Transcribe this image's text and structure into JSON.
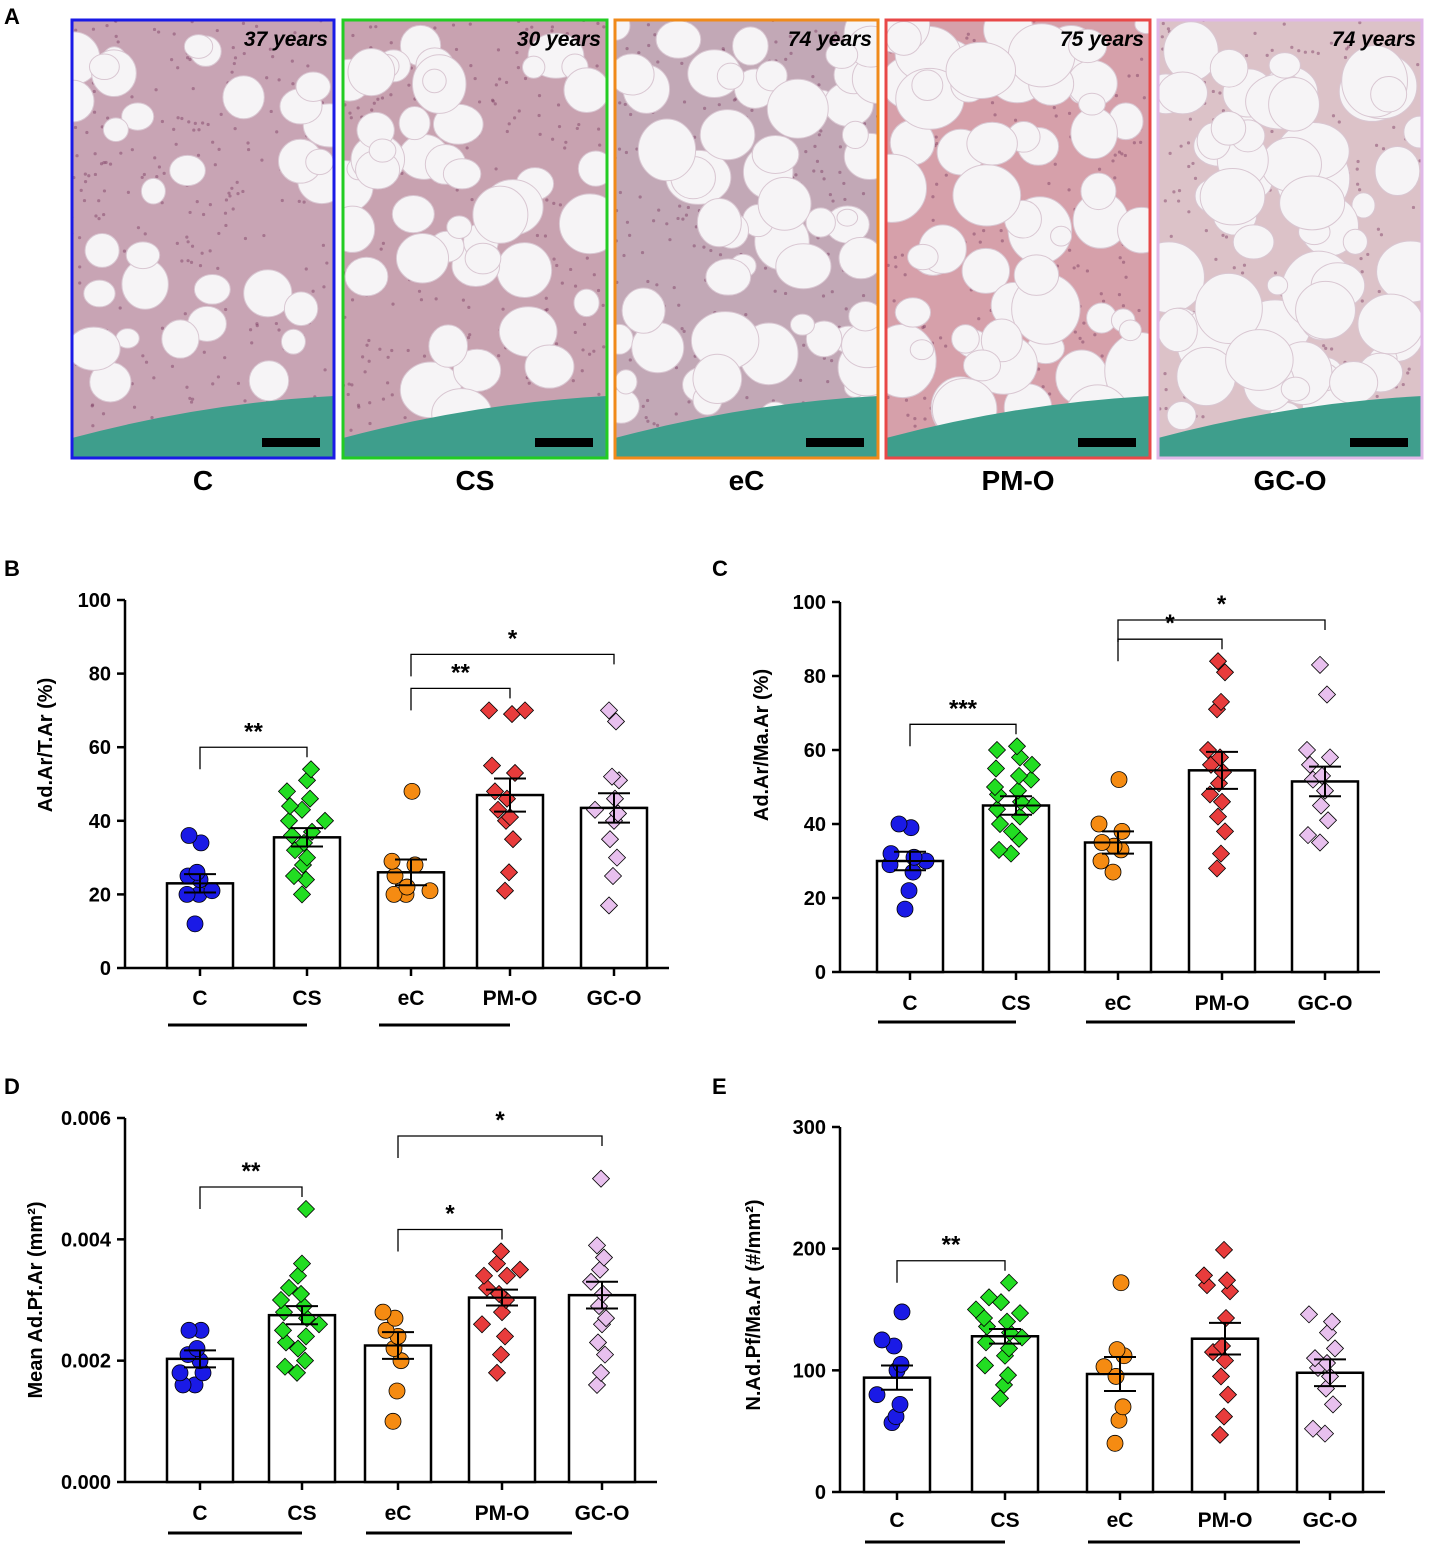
{
  "panel_a": {
    "letter": "A",
    "images": [
      {
        "group": "C",
        "age": "37 years",
        "border": "#1a1ae6",
        "bg": "#c8a4b4",
        "fat": 0.22
      },
      {
        "group": "CS",
        "age": "30 years",
        "border": "#22cc22",
        "bg": "#c8a2b0",
        "fat": 0.4
      },
      {
        "group": "eC",
        "age": "74 years",
        "border": "#f08a1a",
        "bg": "#c2a8b6",
        "fat": 0.55
      },
      {
        "group": "PM-O",
        "age": "75 years",
        "border": "#e84848",
        "bg": "#d6a0aa",
        "fat": 0.62
      },
      {
        "group": "GC-O",
        "age": "74 years",
        "border": "#e0b8e8",
        "bg": "#dcc2c8",
        "fat": 0.7
      }
    ],
    "bone_color": "#3e9e8c"
  },
  "group_colors": {
    "C": "#1a1ae6",
    "CS": "#22dd22",
    "eC": "#f58b12",
    "PM-O": "#e83c3c",
    "GC-O": "#e8c0ee"
  },
  "chart_data": [
    {
      "letter": "B",
      "type": "bar",
      "ylabel": "Ad.Ar/T.Ar  (%)",
      "ylim": [
        0,
        100
      ],
      "ticks": [
        "0",
        "20",
        "40",
        "60",
        "80",
        "100"
      ],
      "categories": [
        "C",
        "CS",
        "eC",
        "PM-O",
        "GC-O"
      ],
      "means": [
        23,
        35.5,
        26,
        47,
        43.5
      ],
      "sem": [
        2.5,
        2.5,
        3.5,
        4.5,
        4
      ],
      "points": [
        [
          12,
          20,
          20,
          21,
          24,
          25,
          26,
          34,
          36
        ],
        [
          20,
          24,
          25,
          28,
          30,
          32,
          34,
          36,
          37,
          40,
          40,
          43,
          44,
          46,
          48,
          51,
          54
        ],
        [
          20,
          20,
          21,
          22,
          25,
          28,
          29,
          48
        ],
        [
          21,
          26,
          35,
          40,
          41,
          43,
          46,
          48,
          53,
          55,
          69,
          70,
          70
        ],
        [
          17,
          25,
          30,
          35,
          40,
          42,
          43,
          46,
          51,
          52,
          67,
          70
        ]
      ],
      "comparisons": [
        {
          "from": 0,
          "to": 1,
          "label": "**"
        },
        {
          "from": 2,
          "to": 3,
          "label": "**"
        },
        {
          "from": 2,
          "to": 4,
          "label": "*"
        }
      ],
      "underlines": [
        [
          0,
          1
        ],
        [
          2,
          3
        ]
      ]
    },
    {
      "letter": "C",
      "type": "bar",
      "ylabel": "Ad.Ar/Ma.Ar  (%)",
      "ylim": [
        0,
        100
      ],
      "ticks": [
        "0",
        "20",
        "40",
        "60",
        "80",
        "100"
      ],
      "categories": [
        "C",
        "CS",
        "eC",
        "PM-O",
        "GC-O"
      ],
      "means": [
        30,
        45,
        35,
        54.5,
        51.5
      ],
      "sem": [
        2.5,
        2.5,
        3,
        5,
        4
      ],
      "points": [
        [
          17,
          22,
          27,
          29,
          30,
          31,
          32,
          39,
          40
        ],
        [
          32,
          33,
          36,
          38,
          40,
          42,
          44,
          45,
          46,
          48,
          49,
          50,
          52,
          53,
          55,
          56,
          58,
          60,
          61
        ],
        [
          27,
          30,
          33,
          34,
          35,
          38,
          40,
          52
        ],
        [
          28,
          32,
          38,
          42,
          46,
          48,
          51,
          54,
          56,
          58,
          60,
          71,
          73,
          81,
          84
        ],
        [
          35,
          37,
          41,
          45,
          49,
          52,
          53,
          56,
          58,
          60,
          75,
          83
        ]
      ],
      "comparisons": [
        {
          "from": 0,
          "to": 1,
          "label": "***"
        },
        {
          "from": 2,
          "to": 3,
          "label": "*"
        },
        {
          "from": 2,
          "to": 4,
          "label": "*"
        }
      ],
      "underlines": [
        [
          0,
          1
        ],
        [
          2,
          4
        ]
      ]
    },
    {
      "letter": "D",
      "type": "bar",
      "ylabel": "Mean Ad.Pf.Ar (mm²)",
      "ylim": [
        0,
        0.006
      ],
      "ticks": [
        "0.000",
        "0.002",
        "0.004",
        "0.006"
      ],
      "categories": [
        "C",
        "CS",
        "eC",
        "PM-O",
        "GC-O"
      ],
      "means": [
        0.00203,
        0.00275,
        0.00225,
        0.00304,
        0.00308
      ],
      "sem": [
        0.00014,
        0.00015,
        0.00022,
        0.00013,
        0.00022
      ],
      "points": [
        [
          0.0016,
          0.0016,
          0.0018,
          0.0018,
          0.002,
          0.0021,
          0.0022,
          0.0025,
          0.0025
        ],
        [
          0.0018,
          0.0019,
          0.002,
          0.0022,
          0.0023,
          0.0024,
          0.0025,
          0.0026,
          0.0027,
          0.0028,
          0.0029,
          0.003,
          0.0031,
          0.0032,
          0.0034,
          0.0036,
          0.0045
        ],
        [
          0.001,
          0.0015,
          0.002,
          0.0022,
          0.0024,
          0.0025,
          0.0027,
          0.0028
        ],
        [
          0.0018,
          0.0021,
          0.0024,
          0.0026,
          0.0028,
          0.003,
          0.0031,
          0.0032,
          0.0034,
          0.0034,
          0.0035,
          0.0036,
          0.0038
        ],
        [
          0.0016,
          0.0018,
          0.0021,
          0.0023,
          0.0026,
          0.0027,
          0.0029,
          0.0031,
          0.0033,
          0.0035,
          0.0037,
          0.0039,
          0.005
        ]
      ],
      "comparisons": [
        {
          "from": 0,
          "to": 1,
          "label": "**"
        },
        {
          "from": 2,
          "to": 3,
          "label": "*"
        },
        {
          "from": 2,
          "to": 4,
          "label": "*"
        }
      ],
      "underlines": [
        [
          0,
          1
        ],
        [
          2,
          4
        ]
      ]
    },
    {
      "letter": "E",
      "type": "bar",
      "ylabel": "N.Ad.Pf/Ma.Ar (#/mm²)",
      "ylim": [
        0,
        300
      ],
      "ticks": [
        "0",
        "100",
        "200",
        "300"
      ],
      "categories": [
        "C",
        "CS",
        "eC",
        "PM-O",
        "GC-O"
      ],
      "means": [
        94,
        128,
        97,
        126,
        98
      ],
      "sem": [
        10,
        6,
        14,
        13,
        11
      ],
      "points": [
        [
          57,
          62,
          72,
          80,
          100,
          105,
          120,
          125,
          148
        ],
        [
          77,
          88,
          96,
          104,
          112,
          118,
          123,
          127,
          131,
          136,
          140,
          143,
          147,
          150,
          156,
          160,
          172
        ],
        [
          40,
          59,
          70,
          95,
          103,
          112,
          117,
          172
        ],
        [
          47,
          62,
          80,
          95,
          108,
          115,
          120,
          143,
          165,
          170,
          174,
          178,
          199
        ],
        [
          48,
          52,
          72,
          85,
          95,
          102,
          106,
          110,
          118,
          131,
          140,
          146
        ]
      ],
      "comparisons": [
        {
          "from": 0,
          "to": 1,
          "label": "**"
        }
      ],
      "underlines": [
        [
          0,
          1
        ],
        [
          2,
          4
        ]
      ]
    }
  ]
}
